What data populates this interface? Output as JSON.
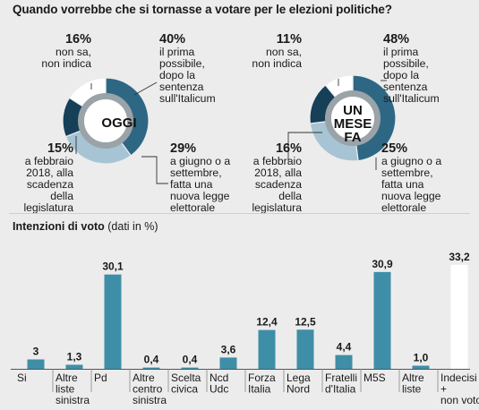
{
  "title": "Quando vorrebbe che si tornasse a votare per le elezioni politiche?",
  "colors": {
    "dark": "#163f58",
    "mid": "#2e6784",
    "light": "#a7c4d4",
    "white": "#ffffff",
    "inner": "#9aa3a8",
    "bar": "#3f8ea8",
    "bar_highlight": "#ffffff"
  },
  "donuts": [
    {
      "center": "OGGI",
      "slices": [
        {
          "pct": "40%",
          "value": 40,
          "text": [
            "il prima",
            "possibile,",
            "dopo la",
            "sentenza",
            "sull'Italicum"
          ]
        },
        {
          "pct": "29%",
          "value": 29,
          "text": [
            "a giugno o a",
            "settembre,",
            "fatta una",
            "nuova legge",
            "elettorale"
          ]
        },
        {
          "pct": "15%",
          "value": 15,
          "text": [
            "a febbraio",
            "2018, alla",
            "scadenza",
            "della",
            "legislatura"
          ]
        },
        {
          "pct": "16%",
          "value": 16,
          "text": [
            "non sa,",
            "non indica"
          ]
        }
      ]
    },
    {
      "center": "UN MESE FA",
      "center_lines": [
        "UN",
        "MESE",
        "FA"
      ],
      "slices": [
        {
          "pct": "48%",
          "value": 48,
          "text": [
            "il prima",
            "possibile,",
            "dopo la",
            "sentenza",
            "sull'Italicum"
          ]
        },
        {
          "pct": "25%",
          "value": 25,
          "text": [
            "a giugno o a",
            "settembre,",
            "fatta una",
            "nuova legge",
            "elettorale"
          ]
        },
        {
          "pct": "16%",
          "value": 16,
          "text": [
            "a febbraio",
            "2018, alla",
            "scadenza",
            "della",
            "legislatura"
          ]
        },
        {
          "pct": "11%",
          "value": 11,
          "text": [
            "non sa,",
            "non indica"
          ]
        }
      ]
    }
  ],
  "bar_section": {
    "title_bold": "Intenzioni di voto",
    "title_rest": "(dati in %)"
  },
  "chart_data": {
    "type": "bar",
    "title": "Intenzioni di voto (dati in %)",
    "categories": [
      [
        "Si"
      ],
      [
        "Altre",
        "liste",
        "sinistra"
      ],
      [
        "Pd"
      ],
      [
        "Altre",
        "centro",
        "sinistra"
      ],
      [
        "Scelta",
        "civica"
      ],
      [
        "Ncd",
        "Udc"
      ],
      [
        "Forza",
        "Italia"
      ],
      [
        "Lega",
        "Nord"
      ],
      [
        "Fratelli",
        "d'Italia"
      ],
      [
        "M5S"
      ],
      [
        "Altre",
        "liste"
      ],
      [
        "Indecisi",
        "+",
        "non voto"
      ]
    ],
    "values": [
      3,
      1.3,
      30.1,
      0.4,
      0.4,
      3.6,
      12.4,
      12.5,
      4.4,
      30.9,
      1.0,
      33.2
    ],
    "value_labels": [
      "3",
      "1,3",
      "30,1",
      "0,4",
      "0,4",
      "3,6",
      "12,4",
      "12,5",
      "4,4",
      "30,9",
      "1,0",
      "33,2"
    ],
    "highlight_index": 11,
    "ylim": [
      0,
      36
    ],
    "grid": false
  }
}
